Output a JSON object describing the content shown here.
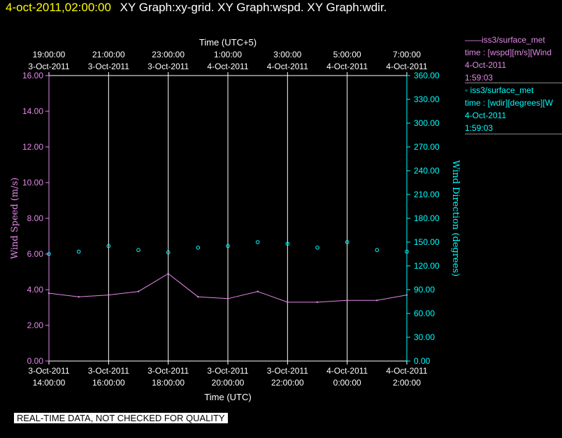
{
  "header": {
    "timestamp": "4-oct-2011,02:00:00",
    "graph_titles": "XY Graph:xy-grid.  XY Graph:wspd.  XY Graph:wdir."
  },
  "legend": {
    "wspd": {
      "line1": "——iss3/surface_met",
      "line2": "time : [wspd][m/s][Wind",
      "line3": "4-Oct-2011",
      "line4": "1:59:03"
    },
    "wdir": {
      "line1": "◦  iss3/surface_met",
      "line2": "time : [wdir][degrees][W",
      "line3": "4-Oct-2011",
      "line4": "1:59:03"
    }
  },
  "notice": "REAL-TIME DATA, NOT CHECKED FOR QUALITY",
  "colors": {
    "speed": "#e488e8",
    "direction": "#00ffff",
    "grid": "#ffffff",
    "background": "#000000",
    "timestamp": "#ffff00"
  },
  "chart_data": {
    "type": "line",
    "xlabel_bottom": "Time (UTC)",
    "xlabel_top": "Time (UTC+5)",
    "ylabel_left": "Wind Speed (m/s)",
    "ylabel_right": "Wind Direction (degrees)",
    "ylim_left": [
      0,
      16
    ],
    "ylim_right": [
      0,
      360
    ],
    "yticks_left": [
      "0.00",
      "2.00",
      "4.00",
      "6.00",
      "8.00",
      "10.00",
      "12.00",
      "14.00",
      "16.00"
    ],
    "yticks_right": [
      "0.00",
      "30.00",
      "60.00",
      "90.00",
      "120.00",
      "150.00",
      "180.00",
      "210.00",
      "240.00",
      "270.00",
      "300.00",
      "330.00",
      "360.00"
    ],
    "x_range_utc": [
      "2011-10-03 14:00",
      "2011-10-04 02:00"
    ],
    "bottom_ticks": [
      {
        "date": "3-Oct-2011",
        "time": "14:00:00"
      },
      {
        "date": "3-Oct-2011",
        "time": "16:00:00"
      },
      {
        "date": "3-Oct-2011",
        "time": "18:00:00"
      },
      {
        "date": "3-Oct-2011",
        "time": "20:00:00"
      },
      {
        "date": "3-Oct-2011",
        "time": "22:00:00"
      },
      {
        "date": "4-Oct-2011",
        "time": "0:00:00"
      },
      {
        "date": "4-Oct-2011",
        "time": "2:00:00"
      }
    ],
    "top_ticks": [
      {
        "time": "19:00:00",
        "date": "3-Oct-2011"
      },
      {
        "time": "21:00:00",
        "date": "3-Oct-2011"
      },
      {
        "time": "23:00:00",
        "date": "3-Oct-2011"
      },
      {
        "time": "1:00:00",
        "date": "4-Oct-2011"
      },
      {
        "time": "3:00:00",
        "date": "4-Oct-2011"
      },
      {
        "time": "5:00:00",
        "date": "4-Oct-2011"
      },
      {
        "time": "7:00:00",
        "date": "4-Oct-2011"
      }
    ],
    "grid": "vertical",
    "series": [
      {
        "name": "iss3/surface_met time : [wspd][m/s]",
        "axis": "left",
        "style": "line",
        "x": [
          "2011-10-03 14:00",
          "2011-10-03 15:00",
          "2011-10-03 16:00",
          "2011-10-03 17:00",
          "2011-10-03 18:00",
          "2011-10-03 19:00",
          "2011-10-03 20:00",
          "2011-10-03 21:00",
          "2011-10-03 22:00",
          "2011-10-03 23:00",
          "2011-10-04 00:00",
          "2011-10-04 01:00",
          "2011-10-04 02:00"
        ],
        "values": [
          3.8,
          3.6,
          3.7,
          3.9,
          4.9,
          3.6,
          3.5,
          3.9,
          3.3,
          3.3,
          3.4,
          3.4,
          3.7
        ]
      },
      {
        "name": "iss3/surface_met time : [wdir][degrees]",
        "axis": "right",
        "style": "scatter",
        "x": [
          "2011-10-03 14:00",
          "2011-10-03 15:00",
          "2011-10-03 16:00",
          "2011-10-03 17:00",
          "2011-10-03 18:00",
          "2011-10-03 19:00",
          "2011-10-03 20:00",
          "2011-10-03 21:00",
          "2011-10-03 22:00",
          "2011-10-03 23:00",
          "2011-10-04 00:00",
          "2011-10-04 01:00",
          "2011-10-04 02:00"
        ],
        "values": [
          135,
          138,
          145,
          140,
          137,
          143,
          145,
          150,
          148,
          143,
          150,
          140,
          138
        ]
      }
    ]
  }
}
